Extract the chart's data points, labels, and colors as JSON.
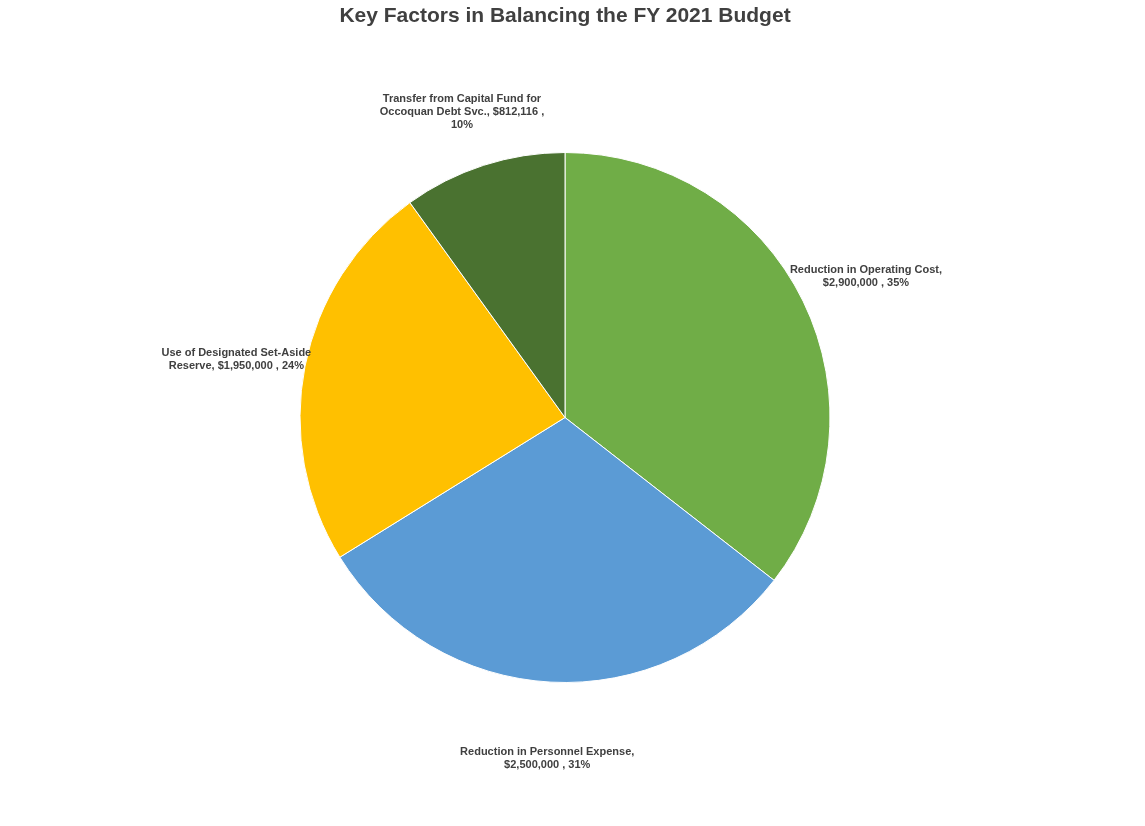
{
  "chart_data": {
    "type": "pie",
    "title": "Key Factors in Balancing the FY 2021 Budget",
    "categories": [
      "Reduction in Operating Cost",
      "Reduction in Personnel Expense",
      "Use of Designated Set-Aside Reserve",
      "Transfer from Capital Fund for Occoquan Debt Svc."
    ],
    "values": [
      2900000,
      2500000,
      1950000,
      812116
    ],
    "value_labels": [
      ", $2,900,000 , 35%",
      ", $2,500,000 , 31%",
      ", $1,950,000 , 24%",
      ", $812,116 , 10%"
    ],
    "colors": [
      "#70ad47",
      "#5b9bd5",
      "#ffc000",
      "#4a7230"
    ],
    "legend": false
  }
}
